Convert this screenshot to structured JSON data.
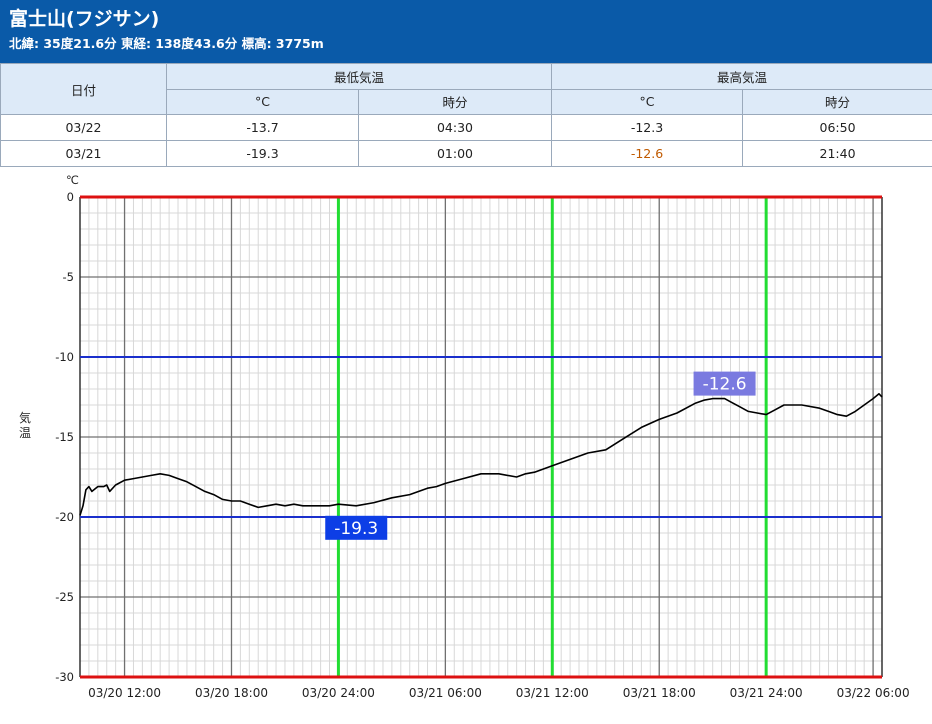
{
  "header": {
    "title": "富士山(フジサン)",
    "subtitle": "北緯: 35度21.6分 東経: 138度43.6分 標高: 3775m"
  },
  "table": {
    "date_header": "日付",
    "min_header": "最低気温",
    "max_header": "最高気温",
    "unit_c": "°C",
    "time_label": "時分",
    "rows": [
      {
        "date": "03/22",
        "min_c": "-13.7",
        "min_time": "04:30",
        "max_c": "-12.3",
        "max_time": "06:50"
      },
      {
        "date": "03/21",
        "min_c": "-19.3",
        "min_time": "01:00",
        "max_c": "-12.6",
        "max_time": "21:40"
      }
    ]
  },
  "colors": {
    "header_bg": "#0a5aa8",
    "table_header_bg": "#ddeaf8",
    "series_line": "#000000",
    "limit_line_red": "#dd1111",
    "reference_line_blue": "#1a2fcc",
    "day_marker_green": "#22dd33",
    "min_badge": "#0d3ee6",
    "max_badge": "#7a7ae0"
  },
  "chart_data": {
    "type": "line",
    "unit_label": "℃",
    "ylabel": "気温",
    "ylim": [
      -30,
      0
    ],
    "yticks": [
      "0",
      "-5",
      "-10",
      "-15",
      "-20",
      "-25",
      "-30"
    ],
    "x_start": "03/20 09:30",
    "x_end": "03/22 06:30",
    "xticks": [
      "03/20 12:00",
      "03/20 18:00",
      "03/20 24:00",
      "03/21 06:00",
      "03/21 12:00",
      "03/21 18:00",
      "03/21 24:00",
      "03/22 06:00"
    ],
    "grid": true,
    "reference_lines": [
      -10,
      -20
    ],
    "day_markers": [
      "03/20 24:00",
      "03/21 12:00",
      "03/21 24:00"
    ],
    "annotations": [
      {
        "text": "-19.3",
        "x": "03/21 01:00",
        "y": -19.3,
        "kind": "min"
      },
      {
        "text": "-12.6",
        "x": "03/21 21:40",
        "y": -12.6,
        "kind": "max"
      }
    ],
    "series": [
      {
        "x": [
          "03/20 09:30",
          "03/20 09:40",
          "03/20 09:50",
          "03/20 10:00",
          "03/20 10:10",
          "03/20 10:30",
          "03/20 10:50",
          "03/20 11:00",
          "03/20 11:10",
          "03/20 11:30",
          "03/20 12:00",
          "03/20 12:30",
          "03/20 13:00",
          "03/20 13:30",
          "03/20 14:00",
          "03/20 14:30",
          "03/20 15:00",
          "03/20 15:30",
          "03/20 16:00",
          "03/20 16:30",
          "03/20 17:00",
          "03/20 17:30",
          "03/20 18:00",
          "03/20 18:30",
          "03/20 19:00",
          "03/20 19:30",
          "03/20 20:00",
          "03/20 20:30",
          "03/20 21:00",
          "03/20 21:30",
          "03/20 22:00",
          "03/20 22:30",
          "03/20 23:00",
          "03/20 23:30",
          "03/21 00:00",
          "03/21 01:00",
          "03/21 02:00",
          "03/21 03:00",
          "03/21 04:00",
          "03/21 05:00",
          "03/21 05:30",
          "03/21 06:00",
          "03/21 07:00",
          "03/21 08:00",
          "03/21 09:00",
          "03/21 10:00",
          "03/21 10:30",
          "03/21 11:00",
          "03/21 12:00",
          "03/21 13:00",
          "03/21 14:00",
          "03/21 15:00",
          "03/21 16:00",
          "03/21 17:00",
          "03/21 18:00",
          "03/21 19:00",
          "03/21 20:00",
          "03/21 20:30",
          "03/21 21:00",
          "03/21 21:40",
          "03/21 22:00",
          "03/21 22:30",
          "03/21 23:00",
          "03/21 23:30",
          "03/22 00:00",
          "03/22 00:30",
          "03/22 01:00",
          "03/22 02:00",
          "03/22 03:00",
          "03/22 03:30",
          "03/22 04:00",
          "03/22 04:30",
          "03/22 05:00",
          "03/22 05:30",
          "03/22 06:00",
          "03/22 06:20",
          "03/22 06:30"
        ],
        "values": [
          -19.9,
          -19.3,
          -18.3,
          -18.1,
          -18.4,
          -18.1,
          -18.1,
          -18.0,
          -18.4,
          -18.0,
          -17.7,
          -17.6,
          -17.5,
          -17.4,
          -17.3,
          -17.4,
          -17.6,
          -17.8,
          -18.1,
          -18.4,
          -18.6,
          -18.9,
          -19.0,
          -19.0,
          -19.2,
          -19.4,
          -19.3,
          -19.2,
          -19.3,
          -19.2,
          -19.3,
          -19.3,
          -19.3,
          -19.3,
          -19.2,
          -19.3,
          -19.1,
          -18.8,
          -18.6,
          -18.2,
          -18.1,
          -17.9,
          -17.6,
          -17.3,
          -17.3,
          -17.5,
          -17.3,
          -17.2,
          -16.8,
          -16.4,
          -16.0,
          -15.8,
          -15.1,
          -14.4,
          -13.9,
          -13.5,
          -12.9,
          -12.7,
          -12.6,
          -12.6,
          -12.8,
          -13.1,
          -13.4,
          -13.5,
          -13.6,
          -13.3,
          -13.0,
          -13.0,
          -13.2,
          -13.4,
          -13.6,
          -13.7,
          -13.4,
          -13.0,
          -12.6,
          -12.3,
          -12.5
        ]
      }
    ]
  }
}
